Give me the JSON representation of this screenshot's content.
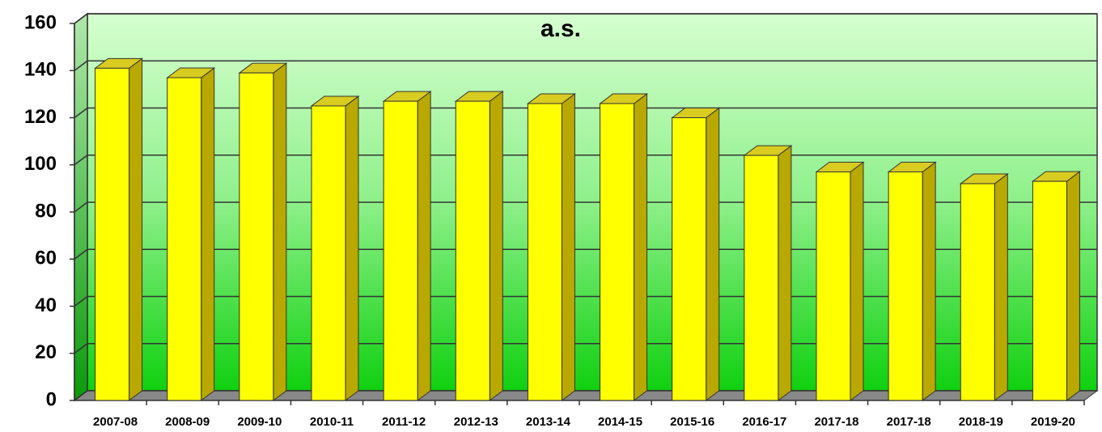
{
  "chart_data": {
    "type": "bar",
    "title": "a.s.",
    "categories": [
      "2007-08",
      "2008-09",
      "2009-10",
      "2010-11",
      "2011-12",
      "2012-13",
      "2013-14",
      "2014-15",
      "2015-16",
      "2016-17",
      "2017-18",
      "2017-18",
      "2018-19",
      "2019-20"
    ],
    "values": [
      141,
      137,
      139,
      125,
      127,
      127,
      126,
      126,
      120,
      104,
      97,
      97,
      92,
      93
    ],
    "color": "#ffff00",
    "ylim": [
      0,
      160
    ],
    "yticks": [
      0,
      20,
      40,
      60,
      80,
      100,
      120,
      140,
      160
    ],
    "grid": true
  }
}
